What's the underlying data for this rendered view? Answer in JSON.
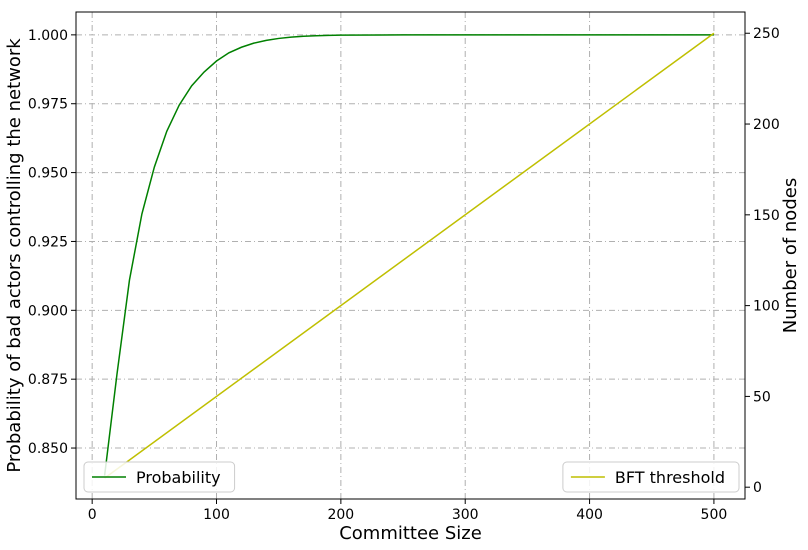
{
  "chart_data": {
    "type": "line",
    "xlabel": "Committee Size",
    "ylabel_left": "Probability of bad actors controlling the network",
    "ylabel_right": "Number of nodes",
    "xlim": [
      -13,
      525
    ],
    "ylim_left": [
      0.8315,
      1.0083
    ],
    "ylim_right": [
      -6.5,
      261.7
    ],
    "x_ticks": [
      0,
      100,
      200,
      300,
      400,
      500
    ],
    "y_ticks_left": [
      0.85,
      0.875,
      0.9,
      0.925,
      0.95,
      0.975,
      1.0
    ],
    "y_ticks_left_labels": [
      "0.850",
      "0.875",
      "0.900",
      "0.925",
      "0.950",
      "0.975",
      "1.000"
    ],
    "y_ticks_right": [
      0,
      50,
      100,
      150,
      200,
      250
    ],
    "grid": true,
    "series": [
      {
        "name": "Probability",
        "axis": "left",
        "color": "#008000",
        "legend_position": "lower-left",
        "x": [
          10,
          20,
          30,
          40,
          50,
          60,
          70,
          80,
          90,
          100,
          110,
          120,
          130,
          140,
          150,
          160,
          170,
          180,
          190,
          200,
          250,
          300,
          350,
          400,
          450,
          500
        ],
        "y": [
          0.84,
          0.877,
          0.911,
          0.935,
          0.952,
          0.965,
          0.9745,
          0.9815,
          0.9865,
          0.9905,
          0.9935,
          0.9955,
          0.997,
          0.998,
          0.9987,
          0.9992,
          0.9995,
          0.9997,
          0.9998,
          0.9999,
          1.0,
          1.0,
          1.0,
          1.0,
          1.0,
          1.0
        ]
      },
      {
        "name": "BFT threshold",
        "axis": "right",
        "color": "#bfbf00",
        "legend_position": "lower-right",
        "x": [
          10,
          500
        ],
        "y": [
          5,
          250
        ]
      }
    ]
  }
}
